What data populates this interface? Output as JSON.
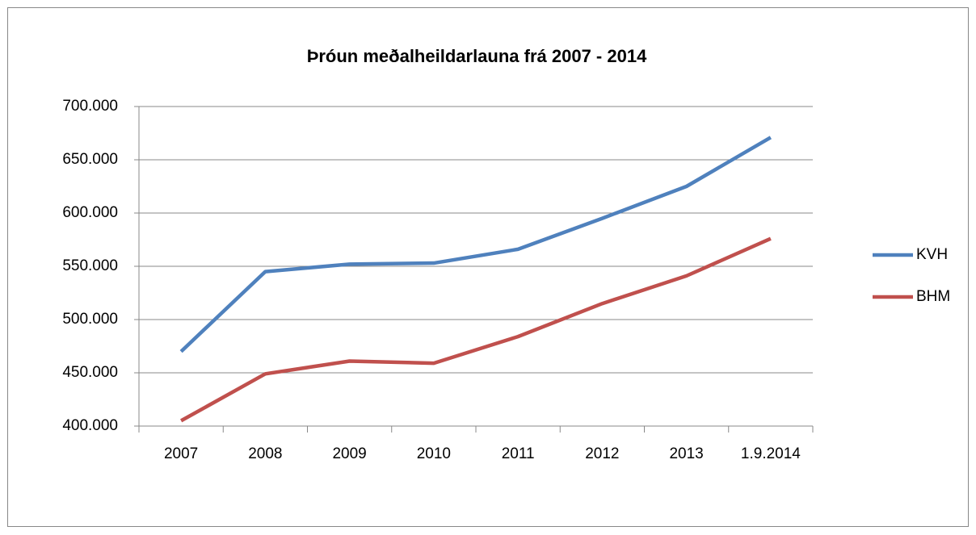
{
  "chart_data": {
    "type": "line",
    "title": "Þróun meðalheildarlauna frá 2007 - 2014",
    "categories": [
      "2007",
      "2008",
      "2009",
      "2010",
      "2011",
      "2012",
      "2013",
      "1.9.2014"
    ],
    "series": [
      {
        "name": "KVH",
        "color": "#4f81bd",
        "values": [
          470000,
          545000,
          552000,
          553000,
          566000,
          595000,
          625000,
          671000
        ]
      },
      {
        "name": "BHM",
        "color": "#c0504d",
        "values": [
          405000,
          449000,
          461000,
          459000,
          484000,
          515000,
          541000,
          576000
        ]
      }
    ],
    "ylim": [
      400000,
      700000
    ],
    "yticks": [
      {
        "value": 400000,
        "label": "400.000"
      },
      {
        "value": 450000,
        "label": "450.000"
      },
      {
        "value": 500000,
        "label": "500.000"
      },
      {
        "value": 550000,
        "label": "550.000"
      },
      {
        "value": 600000,
        "label": "600.000"
      },
      {
        "value": 650000,
        "label": "650.000"
      },
      {
        "value": 700000,
        "label": "700.000"
      }
    ],
    "grid": true,
    "legend": "right"
  }
}
